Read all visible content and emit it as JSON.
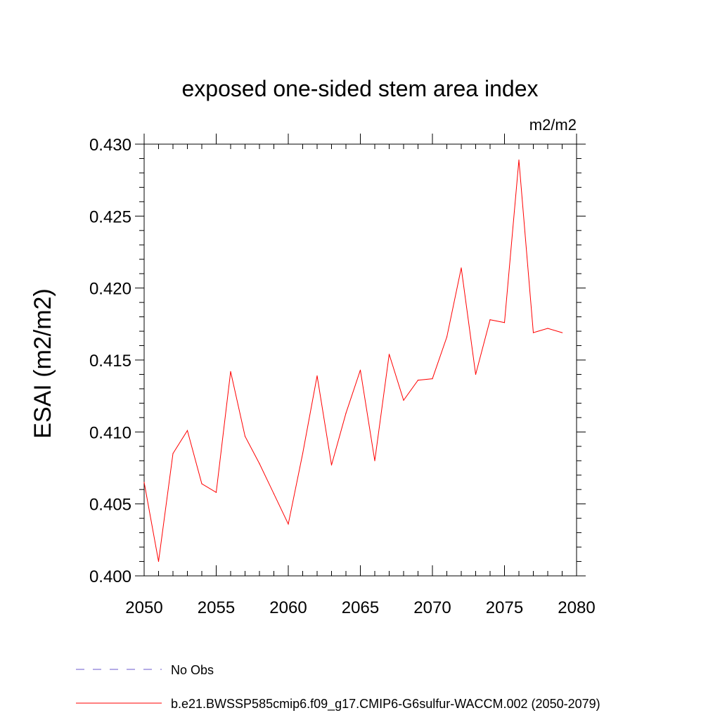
{
  "chart_data": {
    "type": "line",
    "title": "exposed one-sided stem area index",
    "units_label": "m2/m2",
    "xlabel": "",
    "ylabel": "ESAI  (m2/m2)",
    "xlim": [
      2050,
      2080
    ],
    "ylim": [
      0.4,
      0.43
    ],
    "x_major_ticks": [
      2050,
      2055,
      2060,
      2065,
      2070,
      2075,
      2080
    ],
    "x_tick_labels": [
      "2050",
      "2055",
      "2060",
      "2065",
      "2070",
      "2075",
      "2080"
    ],
    "y_major_ticks": [
      0.4,
      0.405,
      0.41,
      0.415,
      0.42,
      0.425,
      0.43
    ],
    "y_tick_labels": [
      "0.400",
      "0.405",
      "0.410",
      "0.415",
      "0.420",
      "0.425",
      "0.430"
    ],
    "grid": false,
    "legend_position": "bottom",
    "series": [
      {
        "name": "b.e21.BWSSP585cmip6.f09_g17.CMIP6-G6sulfur-WACCM.002 (2050-2079)",
        "color": "#ff0000",
        "style": "solid",
        "x": [
          2050,
          2051,
          2052,
          2053,
          2054,
          2055,
          2056,
          2057,
          2058,
          2059,
          2060,
          2061,
          2062,
          2063,
          2064,
          2065,
          2066,
          2067,
          2068,
          2069,
          2070,
          2071,
          2072,
          2073,
          2074,
          2075,
          2076,
          2077,
          2078,
          2079
        ],
        "y": [
          0.4065,
          0.401,
          0.4085,
          0.4101,
          0.4064,
          0.4058,
          0.4142,
          0.4097,
          0.4078,
          0.4057,
          0.4036,
          0.4085,
          0.4139,
          0.4077,
          0.4113,
          0.4143,
          0.408,
          0.4154,
          0.4122,
          0.4136,
          0.4137,
          0.4166,
          0.4214,
          0.414,
          0.4178,
          0.4176,
          0.4289,
          0.4169,
          0.4172,
          0.4169
        ]
      }
    ],
    "legend": [
      {
        "label": "No Obs",
        "color": "#6a5acd",
        "style": "dashed"
      },
      {
        "label": "b.e21.BWSSP585cmip6.f09_g17.CMIP6-G6sulfur-WACCM.002 (2050-2079)",
        "color": "#ff0000",
        "style": "solid"
      }
    ]
  }
}
